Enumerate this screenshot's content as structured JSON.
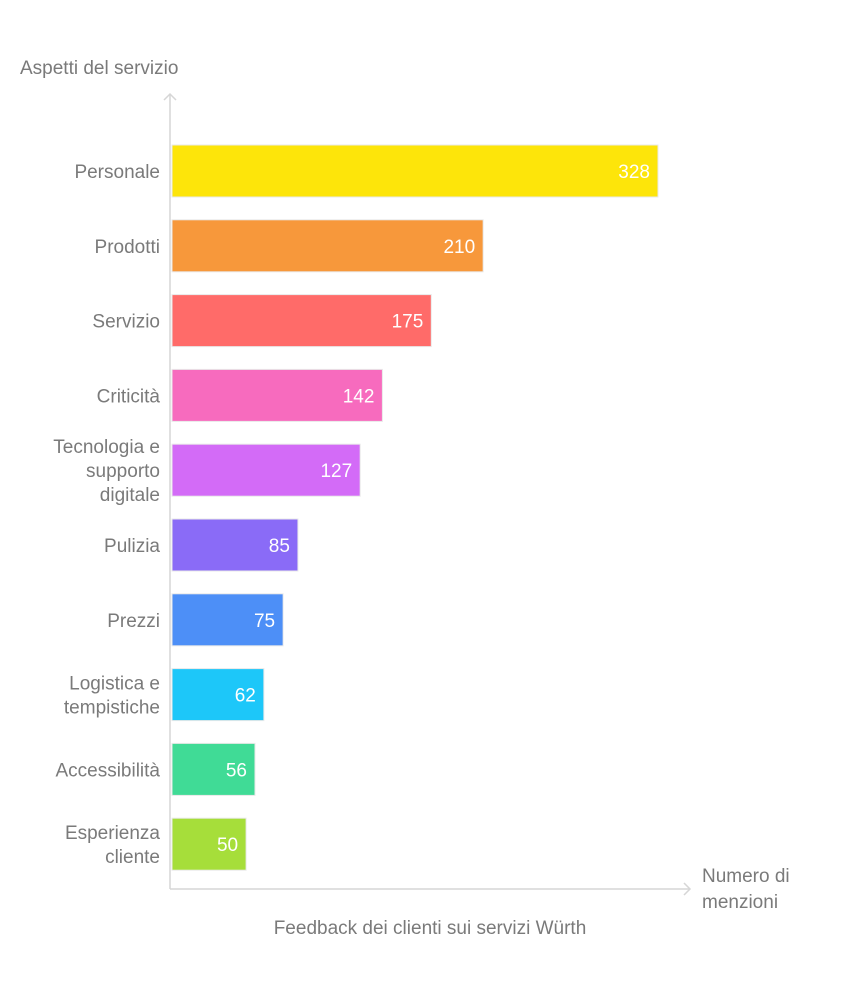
{
  "chart_data": {
    "type": "bar",
    "orientation": "horizontal",
    "title": "",
    "caption": "Feedback dei clienti sui servizi Würth",
    "ylabel": "Aspetti del servizio",
    "xlabel": "Numero di menzioni",
    "categories": [
      "Personale",
      "Prodotti",
      "Servizio",
      "Criticità",
      "Tecnologia e supporto digitale",
      "Pulizia",
      "Prezzi",
      "Logistica e tempistiche",
      "Accessibilità",
      "Esperienza cliente"
    ],
    "values": [
      328,
      210,
      175,
      142,
      127,
      85,
      75,
      62,
      56,
      50
    ],
    "colors": [
      "#FDE50A",
      "#F7983B",
      "#FF6B69",
      "#F76BBE",
      "#D36BF7",
      "#8A6BF7",
      "#4D8FF7",
      "#1DC7F9",
      "#40DB96",
      "#A6DE3A"
    ],
    "grid": false,
    "legend": "none"
  }
}
